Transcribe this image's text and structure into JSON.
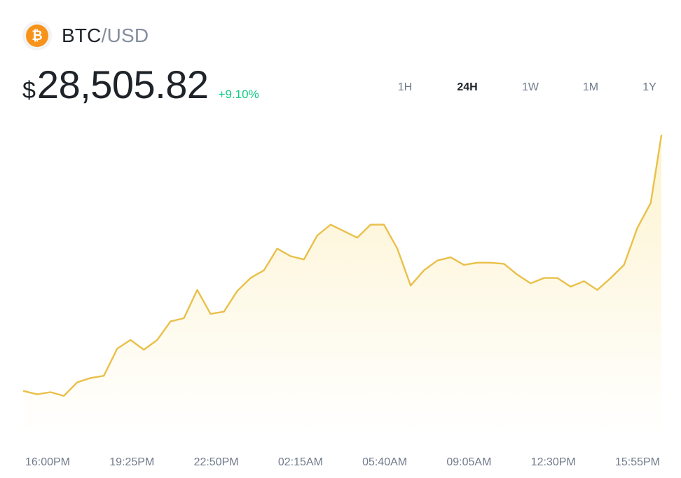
{
  "header": {
    "coin_icon": "bitcoin-icon",
    "coin_symbol": "₿",
    "base": "BTC",
    "separator": "/",
    "quote": "USD"
  },
  "price": {
    "currency": "$",
    "value": "28,505.82",
    "change": "+9.10%"
  },
  "ranges": [
    "1H",
    "24H",
    "1W",
    "1M",
    "1Y"
  ],
  "active_range": "24H",
  "colors": {
    "line": "#e9c04a",
    "fill_top": "#fdf3cf",
    "positive": "#0ecb81",
    "coin": "#f7931a"
  },
  "chart_data": {
    "type": "area",
    "xlabel": "",
    "ylabel": "",
    "x_ticks": [
      "16:00PM",
      "19:25PM",
      "22:50PM",
      "02:15AM",
      "05:40AM",
      "09:05AM",
      "12:30PM",
      "15:55PM"
    ],
    "x": [
      0,
      0.5,
      1,
      1.5,
      2,
      2.5,
      3,
      3.5,
      4,
      4.5,
      5,
      5.5,
      6,
      6.5,
      7,
      7.5,
      8,
      8.5,
      9,
      9.5,
      10,
      10.5,
      11,
      11.5,
      12,
      12.5,
      13,
      13.5,
      14,
      14.5,
      15,
      15.5,
      16,
      16.5,
      17,
      17.5,
      18,
      18.5,
      19,
      19.5,
      20,
      20.5,
      21,
      21.5,
      22,
      22.5,
      23,
      23.5,
      23.9
    ],
    "values": [
      26150,
      26120,
      26140,
      26105,
      26230,
      26270,
      26290,
      26540,
      26620,
      26530,
      26620,
      26790,
      26820,
      27080,
      26860,
      26880,
      27070,
      27190,
      27260,
      27460,
      27390,
      27360,
      27580,
      27680,
      27620,
      27560,
      27680,
      27680,
      27460,
      27120,
      27260,
      27350,
      27380,
      27310,
      27330,
      27330,
      27320,
      27220,
      27140,
      27190,
      27190,
      27110,
      27160,
      27080,
      27190,
      27310,
      27650,
      27880,
      28500
    ],
    "y_range": [
      25750,
      28650
    ],
    "grid": false,
    "legend": "none"
  }
}
